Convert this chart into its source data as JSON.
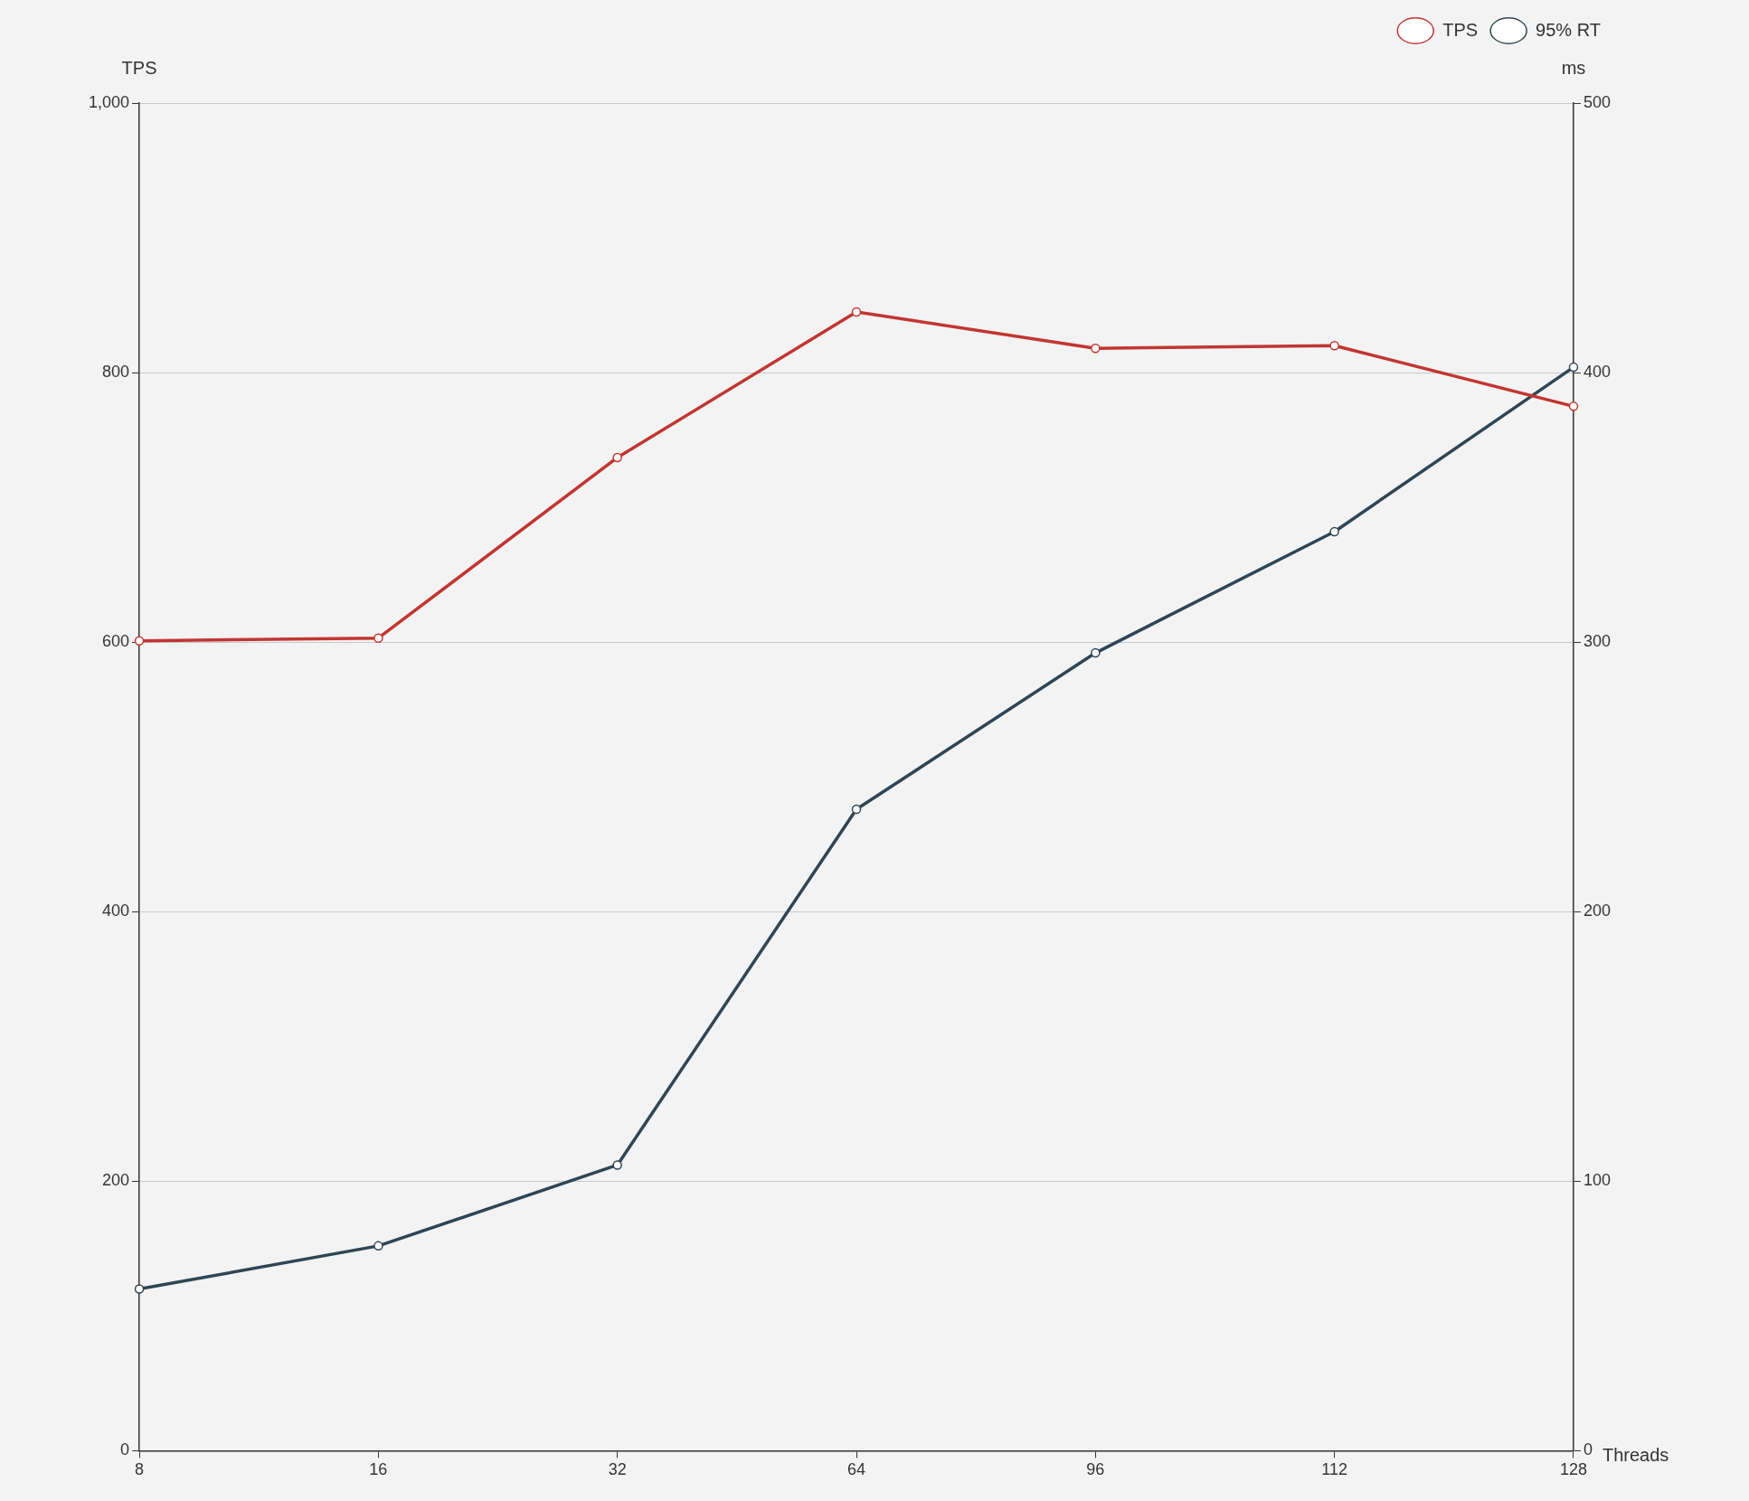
{
  "chart_data": {
    "type": "line",
    "xlabel": "Threads",
    "ylabel": "TPS",
    "y2label": "ms",
    "categories": [
      "8",
      "16",
      "32",
      "64",
      "96",
      "112",
      "128"
    ],
    "series": [
      {
        "name": "TPS",
        "color": "#c23531",
        "values": [
          601,
          603,
          737,
          845,
          818,
          820,
          775
        ]
      },
      {
        "name": "95% RT",
        "color": "#2f4554",
        "axis": "y2",
        "values": [
          60,
          76,
          106,
          238,
          296,
          341,
          402
        ]
      }
    ],
    "ylim": [
      0,
      1000
    ],
    "yticks": [
      0,
      {
        "value": 200,
        "label": "200"
      },
      {
        "value": 400,
        "label": "400"
      },
      {
        "value": 600,
        "label": "600"
      },
      {
        "value": 800,
        "label": "800"
      },
      {
        "value": 1000,
        "label": "1,000"
      }
    ],
    "y2lim": [
      0,
      500
    ],
    "y2ticks": [
      0,
      100,
      200,
      300,
      400,
      500
    ],
    "grid": "y",
    "legend": "top right",
    "marker": "circle",
    "line_style": "solid"
  }
}
